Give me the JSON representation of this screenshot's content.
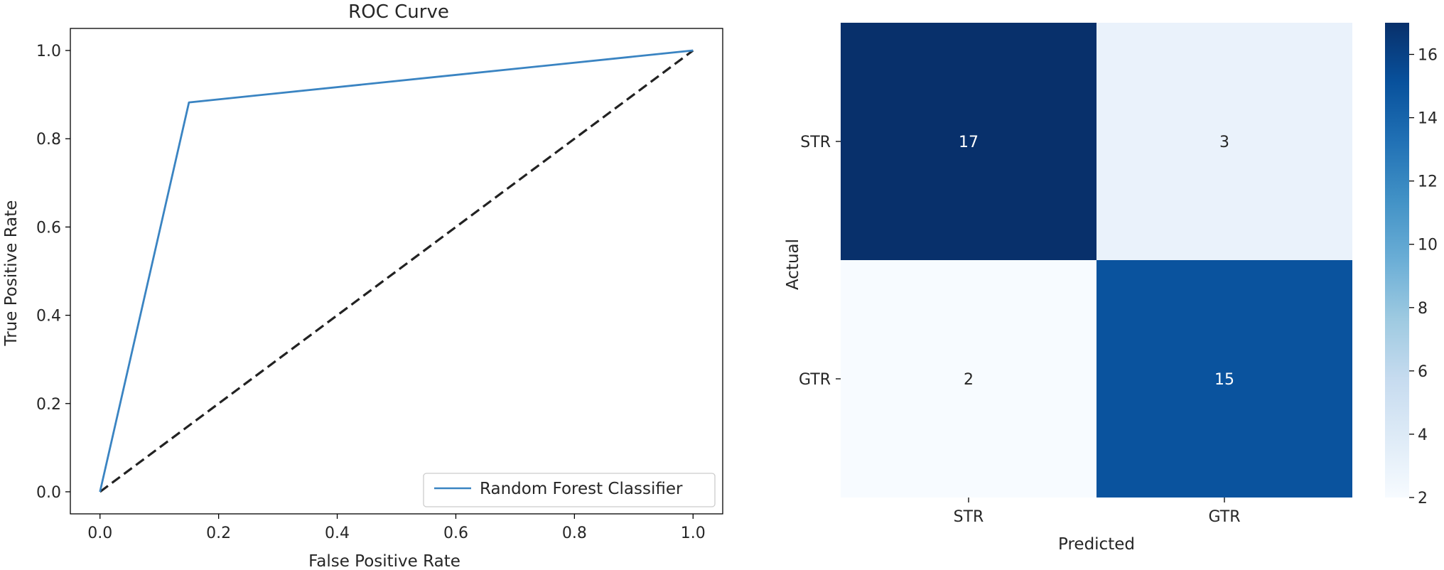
{
  "chart_data": [
    {
      "type": "line",
      "title": "ROC Curve",
      "xlabel": "False Positive Rate",
      "ylabel": "True Positive Rate",
      "xlim": [
        -0.05,
        1.05
      ],
      "ylim": [
        -0.05,
        1.05
      ],
      "xticks": [
        "0.0",
        "0.2",
        "0.4",
        "0.6",
        "0.8",
        "1.0"
      ],
      "yticks": [
        "0.0",
        "0.2",
        "0.4",
        "0.6",
        "0.8",
        "1.0"
      ],
      "grid": false,
      "legend_position": "lower-right",
      "series": [
        {
          "name": "Random Forest Classifier",
          "color": "#3a84c2",
          "x": [
            0.0,
            0.15,
            1.0
          ],
          "y": [
            0.0,
            0.8824,
            1.0
          ]
        },
        {
          "color": "#222222",
          "dashed": true,
          "x": [
            0.0,
            1.0
          ],
          "y": [
            0.0,
            1.0
          ]
        }
      ]
    },
    {
      "type": "heatmap",
      "xlabel": "Predicted",
      "ylabel": "Actual",
      "x_categories": [
        "STR",
        "GTR"
      ],
      "y_categories": [
        "STR",
        "GTR"
      ],
      "values": [
        [
          17,
          3
        ],
        [
          2,
          15
        ]
      ],
      "colormap": "Blues",
      "colorbar": {
        "min": 2,
        "max": 17,
        "ticks": [
          "2",
          "4",
          "6",
          "8",
          "10",
          "12",
          "14",
          "16"
        ]
      }
    }
  ]
}
